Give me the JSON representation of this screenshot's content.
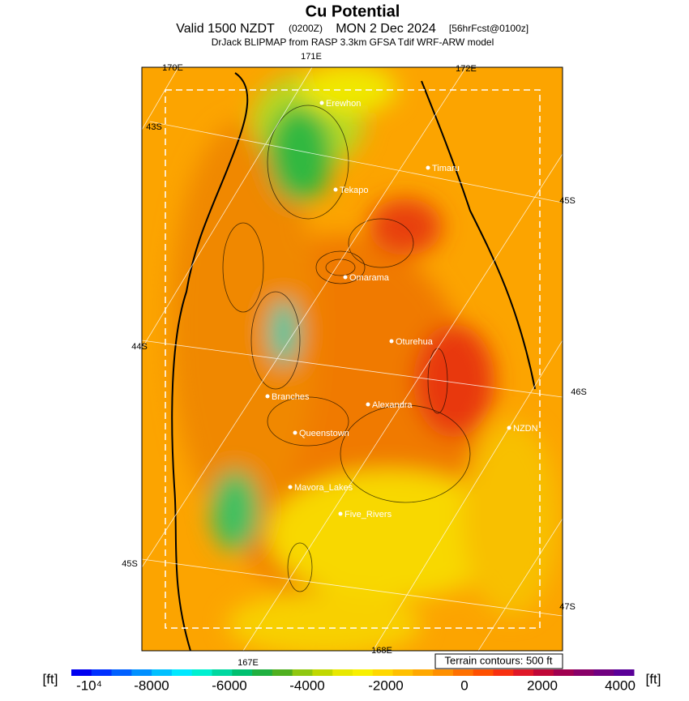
{
  "header": {
    "title": "Cu Potential",
    "valid": "Valid 1500 NZDT",
    "utc": "(0200Z)",
    "date": "MON 2 Dec 2024",
    "forecast": "[56hrFcst@0100z]",
    "source": "DrJack BLIPMAP from RASP 3.3km GFSA Tdif WRF-ARW model"
  },
  "graticule": [
    "170E",
    "171E",
    "172E",
    "43S",
    "45S",
    "44S",
    "46S",
    "45S",
    "47S",
    "167E",
    "168E"
  ],
  "places": [
    "Erewhon",
    "Timaru",
    "Tekapo",
    "Omarama",
    "Oturehua",
    "Branches",
    "Alexandra",
    "NZDN",
    "Queenstown",
    "Mavora_Lakes",
    "Five_Rivers"
  ],
  "note": "Terrain contours: 500 ft",
  "colorbar": {
    "unit_left": "[ft]",
    "unit_right": "[ft]",
    "ticks": [
      "-10⁴",
      "-8000",
      "-6000",
      "-4000",
      "-2000",
      "0",
      "2000",
      "4000"
    ]
  }
}
